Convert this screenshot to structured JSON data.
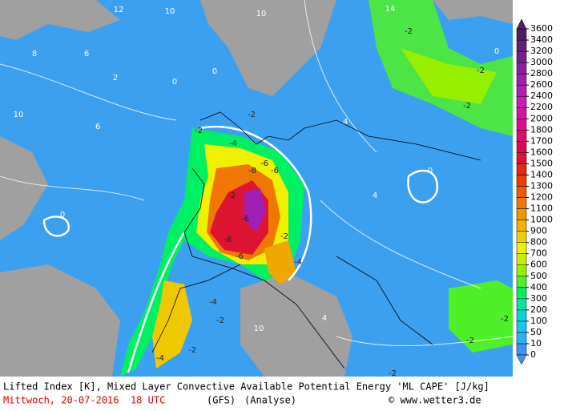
{
  "header": {
    "title": "Lifted Index [K], Mixed Layer Convective Available Potential Energy 'ML CAPE' [J/kg]",
    "date": "Mittwoch, 20-07-2016  18 UTC",
    "model": "(GFS)",
    "run": "(Analyse)",
    "source": "© www.wetter3.de"
  },
  "colorbar": {
    "levels": [
      0,
      10,
      50,
      100,
      200,
      300,
      400,
      500,
      600,
      700,
      800,
      900,
      1000,
      1100,
      1200,
      1300,
      1400,
      1500,
      1600,
      1700,
      1800,
      2000,
      2200,
      2400,
      2600,
      2800,
      3000,
      3200,
      3400,
      3600
    ],
    "colors": [
      "#3c96f0",
      "#28b4f0",
      "#14c8f0",
      "#00d8d8",
      "#00e6a0",
      "#00f064",
      "#50f028",
      "#96f000",
      "#c8f000",
      "#f0f000",
      "#f0d200",
      "#f0b400",
      "#f09600",
      "#f07800",
      "#f05a00",
      "#f03c00",
      "#e62814",
      "#dc1432",
      "#dc0a50",
      "#dc0a6e",
      "#dc0a8c",
      "#d214a0",
      "#c81eb4",
      "#b41eb4",
      "#a01eb4",
      "#8c1ea0",
      "#781e8c",
      "#641e78",
      "#501e64"
    ]
  },
  "contour_labels": [
    "12",
    "10",
    "10",
    "14",
    "-2",
    "8",
    "6",
    "2",
    "10",
    "6",
    "0",
    "-2",
    "-2",
    "-4",
    "-6",
    "-6",
    "-8",
    "-2",
    "-6",
    "-8",
    "-6",
    "-2",
    "-4",
    "-4",
    "-2",
    "-2",
    "-4",
    "0",
    "0",
    "-2",
    "-2",
    "0",
    "4",
    "10",
    "-2",
    "-2",
    "-2",
    "4",
    "4",
    "0"
  ]
}
